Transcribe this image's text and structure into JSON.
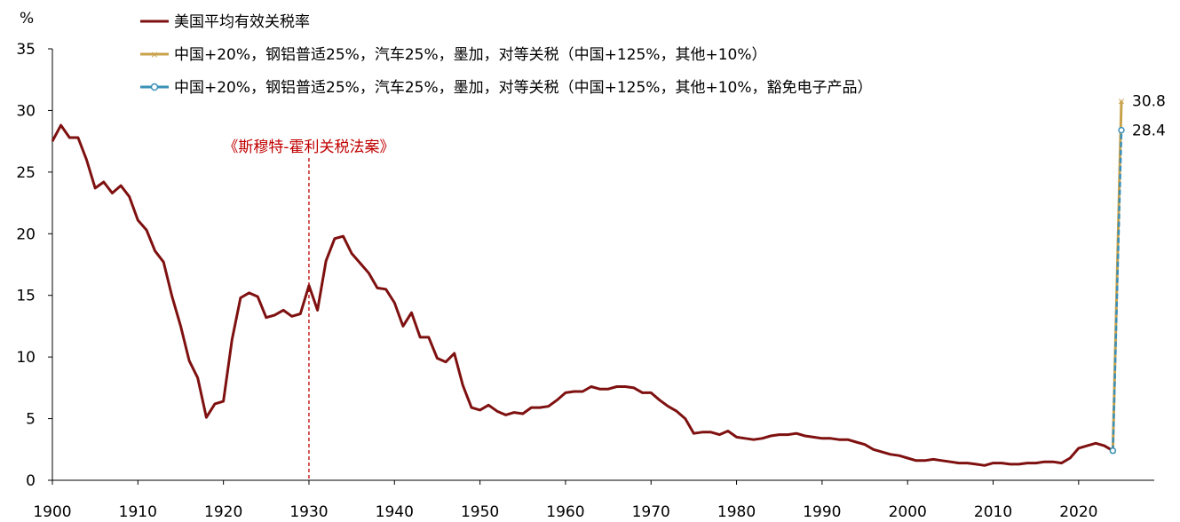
{
  "chart_data": {
    "type": "line",
    "ylabel": "%",
    "xlim": [
      1900,
      2025
    ],
    "ylim": [
      0,
      35
    ],
    "x_ticks": [
      "1900",
      "1910",
      "1920",
      "1930",
      "1940",
      "1950",
      "1960",
      "1970",
      "1980",
      "1990",
      "2000",
      "2010",
      "2020"
    ],
    "y_ticks": [
      "0",
      "5",
      "10",
      "15",
      "20",
      "25",
      "30",
      "35"
    ],
    "grid": false,
    "legend_position": "top-left",
    "series": [
      {
        "name": "美国平均有效关税率",
        "color": "#7f1010",
        "x": [
          1900,
          1901,
          1902,
          1903,
          1904,
          1905,
          1906,
          1907,
          1908,
          1909,
          1910,
          1911,
          1912,
          1913,
          1914,
          1915,
          1916,
          1917,
          1918,
          1919,
          1920,
          1921,
          1922,
          1923,
          1924,
          1925,
          1926,
          1927,
          1928,
          1929,
          1930,
          1931,
          1932,
          1933,
          1934,
          1935,
          1936,
          1937,
          1938,
          1939,
          1940,
          1941,
          1942,
          1943,
          1944,
          1945,
          1946,
          1947,
          1948,
          1949,
          1950,
          1951,
          1952,
          1953,
          1954,
          1955,
          1956,
          1957,
          1958,
          1959,
          1960,
          1961,
          1962,
          1963,
          1964,
          1965,
          1966,
          1967,
          1968,
          1969,
          1970,
          1971,
          1972,
          1973,
          1974,
          1975,
          1976,
          1977,
          1978,
          1979,
          1980,
          1981,
          1982,
          1983,
          1984,
          1985,
          1986,
          1987,
          1988,
          1989,
          1990,
          1991,
          1992,
          1993,
          1994,
          1995,
          1996,
          1997,
          1998,
          1999,
          2000,
          2001,
          2002,
          2003,
          2004,
          2005,
          2006,
          2007,
          2008,
          2009,
          2010,
          2011,
          2012,
          2013,
          2014,
          2015,
          2016,
          2017,
          2018,
          2019,
          2020,
          2021,
          2022,
          2023,
          2024
        ],
        "y": [
          27.5,
          28.8,
          27.8,
          27.8,
          26.0,
          23.7,
          24.2,
          23.3,
          23.9,
          23.0,
          21.1,
          20.3,
          18.6,
          17.7,
          14.9,
          12.5,
          9.7,
          8.3,
          5.1,
          6.2,
          6.4,
          11.4,
          14.8,
          15.2,
          14.9,
          13.2,
          13.4,
          13.8,
          13.3,
          13.5,
          15.8,
          13.8,
          17.8,
          19.6,
          19.8,
          18.4,
          17.6,
          16.8,
          15.6,
          15.5,
          14.4,
          12.5,
          13.6,
          11.6,
          11.6,
          9.9,
          9.6,
          10.3,
          7.7,
          5.9,
          5.7,
          6.1,
          5.6,
          5.3,
          5.5,
          5.4,
          5.9,
          5.9,
          6.0,
          6.5,
          7.1,
          7.2,
          7.2,
          7.6,
          7.4,
          7.4,
          7.6,
          7.6,
          7.5,
          7.1,
          7.1,
          6.5,
          6.0,
          5.6,
          5.0,
          3.8,
          3.9,
          3.9,
          3.7,
          4.0,
          3.5,
          3.4,
          3.3,
          3.4,
          3.6,
          3.7,
          3.7,
          3.8,
          3.6,
          3.5,
          3.4,
          3.4,
          3.3,
          3.3,
          3.1,
          2.9,
          2.5,
          2.3,
          2.1,
          2.0,
          1.8,
          1.6,
          1.6,
          1.7,
          1.6,
          1.5,
          1.4,
          1.4,
          1.3,
          1.2,
          1.4,
          1.4,
          1.3,
          1.3,
          1.4,
          1.4,
          1.5,
          1.5,
          1.4,
          1.8,
          2.6,
          2.8,
          3.0,
          2.8,
          2.4
        ]
      },
      {
        "name": "中国+20%，钢铝普适25%，汽车25%，墨加，对等关税（中国+125%，其他+10%）",
        "color": "#c8a24a",
        "x": [
          2024,
          2025
        ],
        "y": [
          2.4,
          30.8
        ]
      },
      {
        "name": "中国+20%，钢铝普适25%，汽车25%，墨加，对等关税（中国+125%，其他+10%，豁免电子产品）",
        "color": "#3a8fb7",
        "x": [
          2024,
          2025
        ],
        "y": [
          2.4,
          28.4
        ]
      }
    ],
    "annotations": [
      {
        "text": "《斯穆特-霍利关税法案》",
        "x": 1930,
        "color": "#c00000"
      }
    ],
    "end_labels": [
      "30.8",
      "28.4"
    ]
  }
}
